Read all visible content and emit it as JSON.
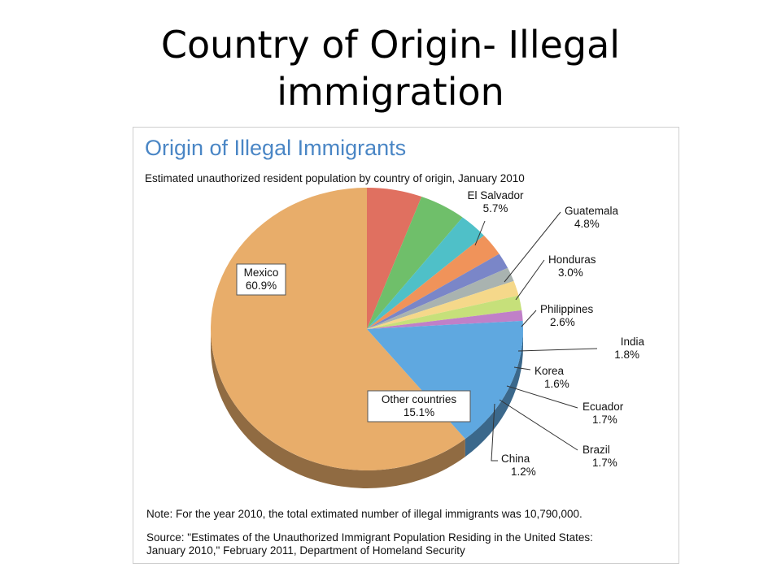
{
  "slide": {
    "title_line1": "Country of Origin- Illegal",
    "title_line2": "immigration"
  },
  "chart_data": {
    "type": "pie",
    "title": "Origin of Illegal Immigrants",
    "subtitle": "Estimated unauthorized resident population by country of origin, January 2010",
    "slices": [
      {
        "label": "Mexico",
        "value_label": "60.9%",
        "value": 60.9,
        "color": "#e8ad6a"
      },
      {
        "label": "El Salvador",
        "value_label": "5.7%",
        "value": 5.7,
        "color": "#e07060"
      },
      {
        "label": "Guatemala",
        "value_label": "4.8%",
        "value": 4.8,
        "color": "#6fbf6a"
      },
      {
        "label": "Honduras",
        "value_label": "3.0%",
        "value": 3.0,
        "color": "#4fc0c8"
      },
      {
        "label": "Philippines",
        "value_label": "2.6%",
        "value": 2.6,
        "color": "#f0935a"
      },
      {
        "label": "India",
        "value_label": "1.8%",
        "value": 1.8,
        "color": "#7a86c8"
      },
      {
        "label": "Korea",
        "value_label": "1.6%",
        "value": 1.6,
        "color": "#a9b3b0"
      },
      {
        "label": "Ecuador",
        "value_label": "1.7%",
        "value": 1.7,
        "color": "#f5d88a"
      },
      {
        "label": "Brazil",
        "value_label": "1.7%",
        "value": 1.7,
        "color": "#c6e07a"
      },
      {
        "label": "China",
        "value_label": "1.2%",
        "value": 1.2,
        "color": "#c080c8"
      },
      {
        "label": "Other countries",
        "value_label": "15.1%",
        "value": 15.1,
        "color": "#5fa8e0"
      }
    ],
    "note": "Note: For the year 2010, the total extimated number of illegal immigrants was 10,790,000.",
    "source_line1": "Source: \"Estimates of the Unauthorized Immigrant Population Residing in the United States:",
    "source_line2": "January 2010,\" February 2011, Department of Homeland Security"
  }
}
